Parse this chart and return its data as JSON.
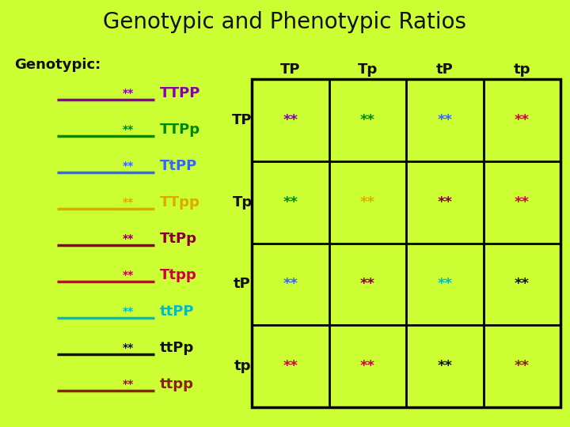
{
  "title": "Genotypic and Phenotypic Ratios",
  "bg_color": "#ccff33",
  "title_color": "#111111",
  "title_fontsize": 20,
  "genotypic_label": "Genotypic:",
  "genotypic_items": [
    {
      "ratio": "**",
      "label": "TTPP",
      "color": "#8800aa"
    },
    {
      "ratio": "**",
      "label": "TTPp",
      "color": "#008800"
    },
    {
      "ratio": "**",
      "label": "TtPP",
      "color": "#3366ff"
    },
    {
      "ratio": "**",
      "label": "TTpp",
      "color": "#ddaa00"
    },
    {
      "ratio": "**",
      "label": "TtPp",
      "color": "#880033"
    },
    {
      "ratio": "**",
      "label": "Ttpp",
      "color": "#cc0044"
    },
    {
      "ratio": "**",
      "label": "ttPP",
      "color": "#00bbcc"
    },
    {
      "ratio": "**",
      "label": "ttPp",
      "color": "#111111"
    },
    {
      "ratio": "**",
      "label": "ttpp",
      "color": "#882200"
    }
  ],
  "col_headers": [
    "TP",
    "Tp",
    "tP",
    "tp"
  ],
  "row_headers": [
    "TP",
    "Tp",
    "tP",
    "tp"
  ],
  "grid_colors": [
    [
      "#8800aa",
      "#008800",
      "#3366ff",
      "#cc0044"
    ],
    [
      "#008800",
      "#ddaa00",
      "#880033",
      "#cc0044"
    ],
    [
      "#3366ff",
      "#880033",
      "#00bbcc",
      "#111111"
    ],
    [
      "#cc0044",
      "#cc0044",
      "#111111",
      "#882200"
    ]
  ]
}
